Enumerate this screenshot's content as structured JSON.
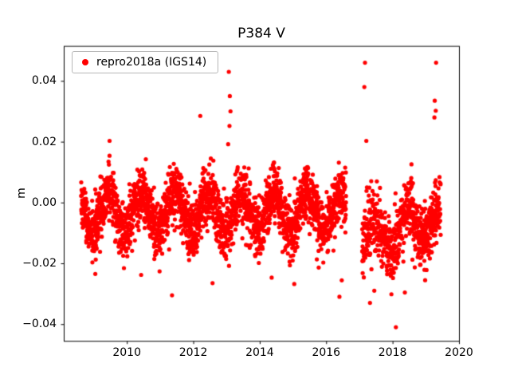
{
  "figure": {
    "background": "#ffffff"
  },
  "chart_data": {
    "type": "scatter",
    "title": "P384 V",
    "xlabel": "",
    "ylabel": "m",
    "legend": {
      "position": "upper left",
      "frame": true,
      "entries": [
        {
          "label": "repro2018a (IGS14)",
          "color": "#ff0000",
          "marker": "circle"
        }
      ]
    },
    "axes": {
      "xlim": [
        2008.1,
        2020.0
      ],
      "ylim": [
        -0.0455,
        0.0515
      ],
      "grid": false,
      "xticks": {
        "values": [
          2010,
          2012,
          2014,
          2016,
          2018,
          2020
        ],
        "labels": [
          "2010",
          "2012",
          "2014",
          "2016",
          "2018",
          "2020"
        ]
      },
      "yticks": {
        "values": [
          -0.04,
          -0.02,
          0.0,
          0.02,
          0.04
        ],
        "labels": [
          "−0.04",
          "−0.02",
          "0.00",
          "0.02",
          "0.04"
        ]
      }
    },
    "series": [
      {
        "name": "repro2018a (IGS14)",
        "color": "#ff0000",
        "marker": "circle",
        "marker_radius_px": 2.6,
        "seed": 20180384,
        "low_tail_probability": 0.035,
        "low_tail_scale": 0.005,
        "description": "Dense daily GPS vertical-position scatter (metres) with annual oscillation, a data gap in late 2016, a lower/sparser band during 2017-2018, and isolated outliers.",
        "generated_segments": [
          {
            "x_start": 2008.62,
            "x_end": 2016.6,
            "samples_per_year": 340,
            "mean": -0.003,
            "annual_amplitude": 0.0062,
            "annual_phase": 0.2,
            "noise_sigma": 0.0046,
            "dropout": 0.12
          },
          {
            "x_start": 2017.08,
            "x_end": 2018.25,
            "samples_per_year": 290,
            "mean": -0.0105,
            "annual_amplitude": 0.005,
            "annual_phase": 0.2,
            "noise_sigma": 0.0056,
            "dropout": 0.15
          },
          {
            "x_start": 2018.25,
            "x_end": 2019.45,
            "samples_per_year": 330,
            "mean": -0.007,
            "annual_amplitude": 0.006,
            "annual_phase": 0.2,
            "noise_sigma": 0.0048,
            "dropout": 0.12
          }
        ],
        "outlier_points": [
          [
            2012.21,
            0.0285
          ],
          [
            2013.07,
            0.043
          ],
          [
            2013.1,
            0.035
          ],
          [
            2013.12,
            0.03
          ],
          [
            2013.09,
            0.0252
          ],
          [
            2013.05,
            0.0192
          ],
          [
            2017.17,
            0.046
          ],
          [
            2017.15,
            0.038
          ],
          [
            2017.21,
            0.0203
          ],
          [
            2019.31,
            0.046
          ],
          [
            2019.27,
            0.0335
          ],
          [
            2019.3,
            0.0302
          ],
          [
            2019.26,
            0.028
          ],
          [
            2009.05,
            -0.0235
          ],
          [
            2010.43,
            -0.0238
          ],
          [
            2011.36,
            -0.0305
          ],
          [
            2012.58,
            -0.0265
          ],
          [
            2014.36,
            -0.0247
          ],
          [
            2015.04,
            -0.0268
          ],
          [
            2016.4,
            -0.031
          ],
          [
            2016.47,
            -0.0256
          ],
          [
            2017.32,
            -0.033
          ],
          [
            2017.45,
            -0.029
          ],
          [
            2018.1,
            -0.041
          ],
          [
            2018.37,
            -0.0296
          ]
        ]
      }
    ]
  }
}
